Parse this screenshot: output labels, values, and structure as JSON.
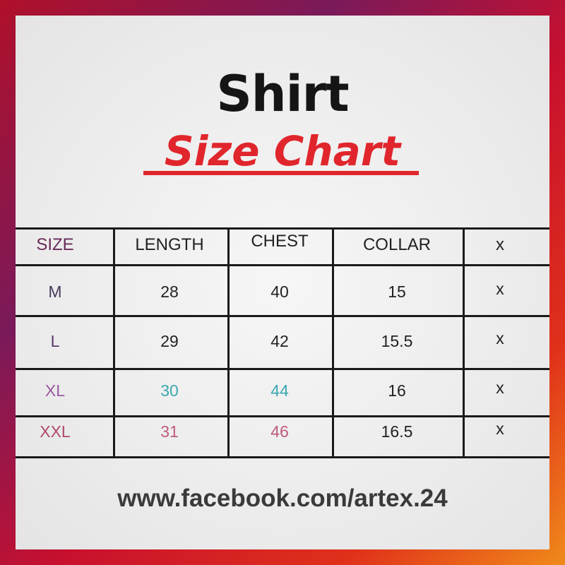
{
  "title": "Shirt",
  "subtitle": "Size Chart",
  "table": {
    "headers": [
      "SIZE",
      "LENGTH",
      "CHEST",
      "COLLAR",
      "x"
    ],
    "rows": [
      [
        "M",
        "28",
        "40",
        "15",
        "x"
      ],
      [
        "L",
        "29",
        "42",
        "15.5",
        "x"
      ],
      [
        "XL",
        "30",
        "44",
        "16",
        "x"
      ],
      [
        "XXL",
        "31",
        "46",
        "16.5",
        "x"
      ]
    ],
    "row_colors": [
      "#2a2a3a",
      "#2a2a3a",
      "#3aa8b0",
      "#c05a7a"
    ]
  },
  "footer_url": "www.facebook.com/artex.24",
  "colors": {
    "accent": "#e0262c",
    "frame": "#b0102a"
  }
}
